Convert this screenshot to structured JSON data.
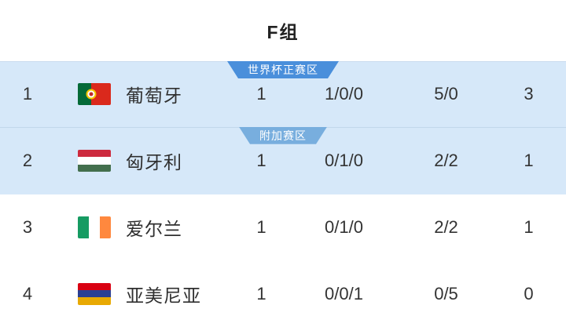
{
  "title": "F组",
  "colors": {
    "highlight_row_bg": "#d6e8f9",
    "row_divider": "#c2d7eb",
    "primary_zone_badge_bg": "#4a8fdb",
    "secondary_zone_badge_bg": "#78aede",
    "badge_text": "#ffffff",
    "text": "#333333"
  },
  "table": {
    "rows": [
      {
        "rank": "1",
        "flag_icon": "portugal-flag-icon",
        "team": "葡萄牙",
        "played": "1",
        "win_draw_loss": "1/0/0",
        "goals_for_against": "5/0",
        "points": "3",
        "zone": "世界杯正赛区",
        "highlighted": true
      },
      {
        "rank": "2",
        "flag_icon": "hungary-flag-icon",
        "team": "匈牙利",
        "played": "1",
        "win_draw_loss": "0/1/0",
        "goals_for_against": "2/2",
        "points": "1",
        "zone": "附加赛区",
        "highlighted": true
      },
      {
        "rank": "3",
        "flag_icon": "ireland-flag-icon",
        "team": "爱尔兰",
        "played": "1",
        "win_draw_loss": "0/1/0",
        "goals_for_against": "2/2",
        "points": "1",
        "highlighted": false
      },
      {
        "rank": "4",
        "flag_icon": "armenia-flag-icon",
        "team": "亚美尼亚",
        "played": "1",
        "win_draw_loss": "0/0/1",
        "goals_for_against": "0/5",
        "points": "0",
        "highlighted": false
      }
    ]
  }
}
